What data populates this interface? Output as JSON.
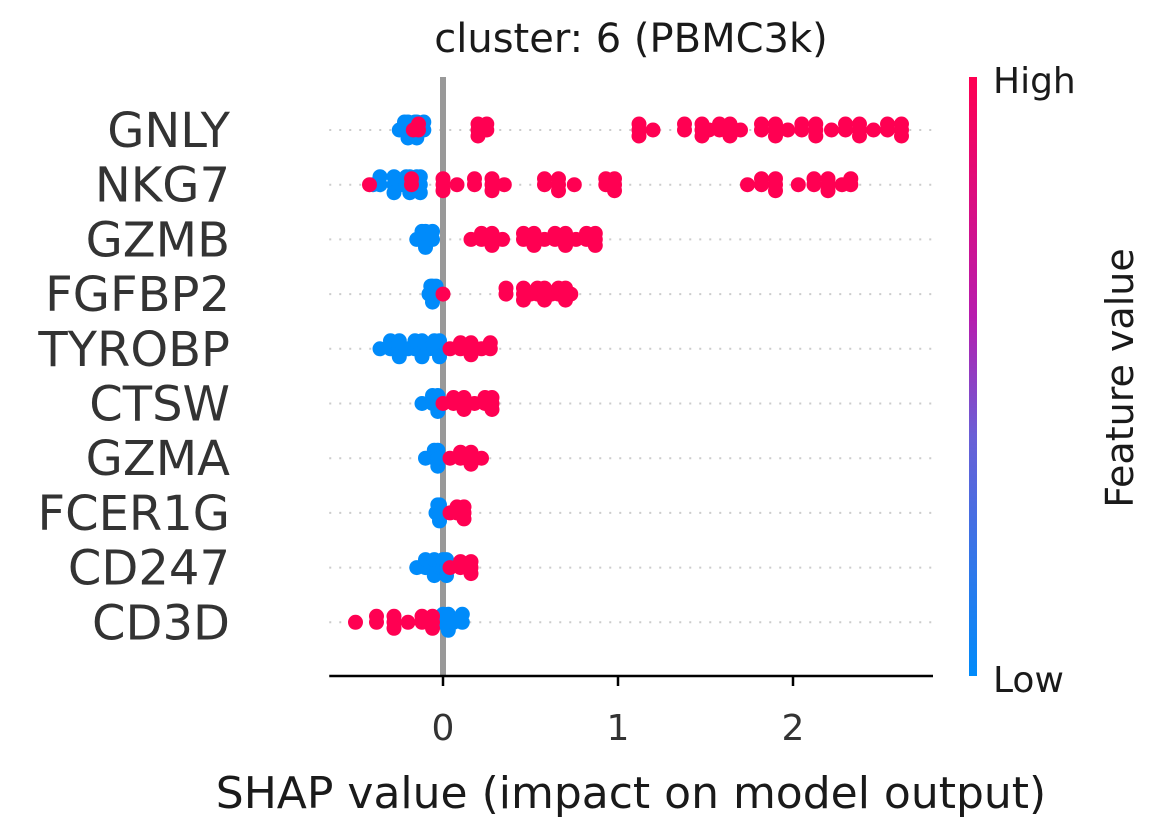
{
  "chart_data": {
    "type": "scatter",
    "subtype": "shap_beeswarm_summary",
    "title": "cluster: 6 (PBMC3k)",
    "xlabel": "SHAP value (impact on model output)",
    "xlim": [
      -0.65,
      2.8
    ],
    "xticks": [
      0,
      1,
      2
    ],
    "colorbar": {
      "title": "Feature value",
      "high_label": "High",
      "low_label": "Low",
      "high_color": "#ff0052",
      "low_color": "#008bfa"
    },
    "features": [
      {
        "name": "GNLY",
        "high_values": [
          -0.17,
          -0.14,
          0.2,
          0.22,
          0.25,
          1.12,
          1.2,
          1.38,
          1.48,
          1.52,
          1.58,
          1.64,
          1.7,
          1.82,
          1.9,
          1.97,
          2.05,
          2.13,
          2.22,
          2.3,
          2.38,
          2.46,
          2.54,
          2.62
        ],
        "low_values": [
          -0.25,
          -0.22,
          -0.2,
          -0.18,
          -0.16,
          -0.15,
          -0.13,
          -0.11
        ]
      },
      {
        "name": "NKG7",
        "high_values": [
          -0.42,
          -0.18,
          0.0,
          0.08,
          0.18,
          0.28,
          0.35,
          0.58,
          0.66,
          0.75,
          0.93,
          0.98,
          1.74,
          1.82,
          1.9,
          2.03,
          2.12,
          2.2,
          2.28,
          2.33
        ],
        "low_values": [
          -0.4,
          -0.36,
          -0.28,
          -0.24,
          -0.21,
          -0.19,
          -0.17,
          -0.15,
          -0.13
        ]
      },
      {
        "name": "GZMB",
        "high_values": [
          0.16,
          0.22,
          0.28,
          0.34,
          0.46,
          0.52,
          0.58,
          0.64,
          0.7,
          0.76,
          0.82,
          0.87
        ],
        "low_values": [
          -0.15,
          -0.12,
          -0.1,
          -0.08,
          -0.06
        ]
      },
      {
        "name": "FGFBP2",
        "high_values": [
          0.0,
          0.36,
          0.46,
          0.5,
          0.54,
          0.58,
          0.62,
          0.66,
          0.7,
          0.73
        ],
        "low_values": [
          -0.08,
          -0.07,
          -0.06,
          -0.05,
          -0.04
        ]
      },
      {
        "name": "TYROBP",
        "high_values": [
          0.04,
          0.1,
          0.16,
          0.22,
          0.27
        ],
        "low_values": [
          -0.36,
          -0.3,
          -0.25,
          -0.2,
          -0.16,
          -0.12,
          -0.08,
          -0.05,
          -0.02
        ]
      },
      {
        "name": "CTSW",
        "high_values": [
          0.0,
          0.06,
          0.12,
          0.18,
          0.24,
          0.28
        ],
        "low_values": [
          -0.12,
          -0.06,
          -0.03,
          -0.02
        ]
      },
      {
        "name": "GZMA",
        "high_values": [
          0.04,
          0.1,
          0.16,
          0.22
        ],
        "low_values": [
          -0.1,
          -0.05,
          -0.03,
          -0.02
        ]
      },
      {
        "name": "FCER1G",
        "high_values": [
          0.04,
          0.08,
          0.12
        ],
        "low_values": [
          -0.04,
          -0.03,
          -0.02,
          -0.01
        ]
      },
      {
        "name": "CD247",
        "high_values": [
          0.04,
          0.1,
          0.16
        ],
        "low_values": [
          -0.15,
          -0.1,
          -0.05,
          -0.02,
          0.0,
          0.02
        ]
      },
      {
        "name": "CD3D",
        "high_values": [
          -0.5,
          -0.38,
          -0.28,
          -0.2,
          -0.12,
          -0.06
        ],
        "low_values": [
          -0.02,
          0.0,
          0.03,
          0.06,
          0.11
        ]
      }
    ]
  }
}
